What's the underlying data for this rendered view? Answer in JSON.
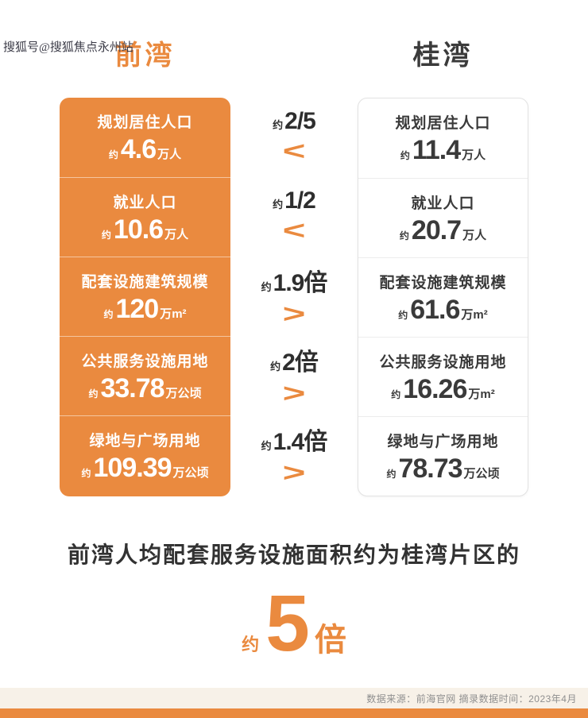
{
  "watermark": "搜狐号@搜狐焦点永州站",
  "header": {
    "left": "前湾",
    "right": "桂湾"
  },
  "rows": [
    {
      "left": {
        "label": "规划居住人口",
        "approx": "约",
        "value": "4.6",
        "unit": "万人"
      },
      "middle": {
        "approx": "约",
        "ratio": "2/5",
        "comparator": "<"
      },
      "right": {
        "label": "规划居住人口",
        "approx": "约",
        "value": "11.4",
        "unit": "万人"
      }
    },
    {
      "left": {
        "label": "就业人口",
        "approx": "约",
        "value": "10.6",
        "unit": "万人"
      },
      "middle": {
        "approx": "约",
        "ratio": "1/2",
        "comparator": "<"
      },
      "right": {
        "label": "就业人口",
        "approx": "约",
        "value": "20.7",
        "unit": "万人"
      }
    },
    {
      "left": {
        "label": "配套设施建筑规模",
        "approx": "约",
        "value": "120",
        "unit": "万m²"
      },
      "middle": {
        "approx": "约",
        "ratio": "1.9倍",
        "comparator": ">"
      },
      "right": {
        "label": "配套设施建筑规模",
        "approx": "约",
        "value": "61.6",
        "unit": "万m²"
      }
    },
    {
      "left": {
        "label": "公共服务设施用地",
        "approx": "约",
        "value": "33.78",
        "unit": "万公顷"
      },
      "middle": {
        "approx": "约",
        "ratio": "2倍",
        "comparator": ">"
      },
      "right": {
        "label": "公共服务设施用地",
        "approx": "约",
        "value": "16.26",
        "unit": "万m²"
      }
    },
    {
      "left": {
        "label": "绿地与广场用地",
        "approx": "约",
        "value": "109.39",
        "unit": "万公顷"
      },
      "middle": {
        "approx": "约",
        "ratio": "1.4倍",
        "comparator": ">"
      },
      "right": {
        "label": "绿地与广场用地",
        "approx": "约",
        "value": "78.73",
        "unit": "万公顷"
      }
    }
  ],
  "summary": {
    "text": "前湾人均配套服务设施面积约为桂湾片区的",
    "approx": "约",
    "value": "5",
    "unit": "倍"
  },
  "footer": {
    "text": "数据来源：前海官网  摘录数据时间：2023年4月"
  },
  "colors": {
    "accent": "#EA8A3F"
  },
  "chart_data": {
    "type": "table",
    "title": "前湾 vs 桂湾",
    "categories": [
      "规划居住人口 (万人)",
      "就业人口 (万人)",
      "配套设施建筑规模 (万m²)",
      "公共服务设施用地",
      "绿地与广场用地"
    ],
    "series": [
      {
        "name": "前湾",
        "values": [
          4.6,
          10.6,
          120,
          33.78,
          109.39
        ]
      },
      {
        "name": "桂湾",
        "values": [
          11.4,
          20.7,
          61.6,
          16.26,
          78.73
        ]
      }
    ],
    "ratios": [
      "约2/5",
      "约1/2",
      "约1.9倍",
      "约2倍",
      "约1.4倍"
    ],
    "comparators": [
      "<",
      "<",
      ">",
      ">",
      ">"
    ],
    "conclusion": "前湾人均配套服务设施面积约为桂湾片区的约5倍"
  }
}
